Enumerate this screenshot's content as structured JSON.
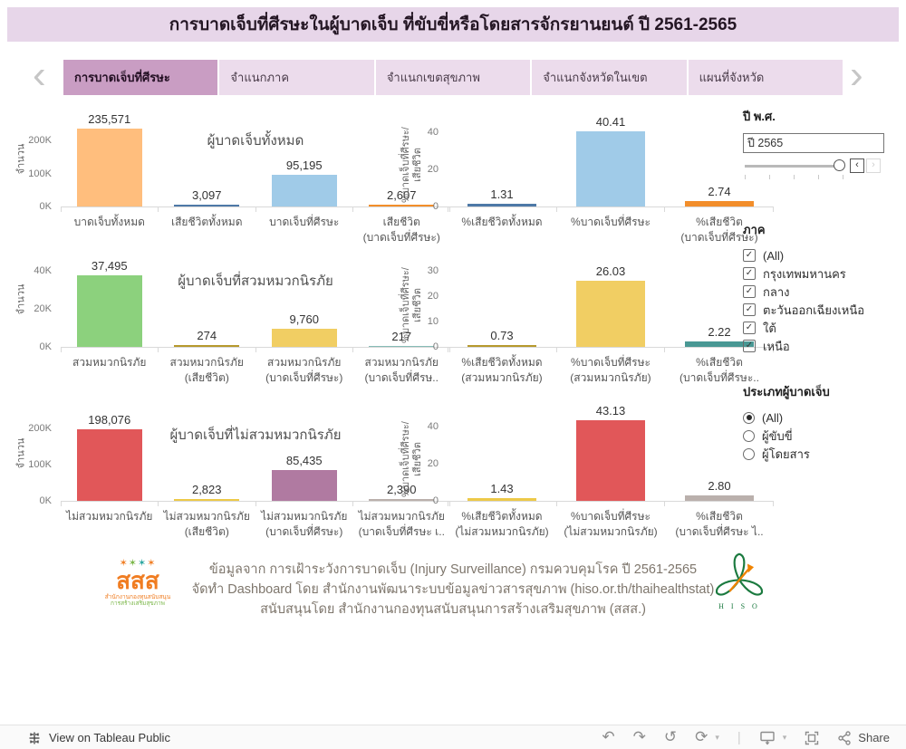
{
  "title": "การบาดเจ็บที่ศีรษะในผู้บาดเจ็บ ที่ขับขี่หรือโดยสารจักรยานยนต์ ปี 2561-2565",
  "tabs": {
    "items": [
      "การบาดเจ็บที่ศีรษะ",
      "จำแนกภาค",
      "จำแนกเขตสุขภาพ",
      "จำแนกจังหวัดในเขต",
      "แผนที่จังหวัด"
    ],
    "active_index": 0
  },
  "colors": {
    "title_bar_bg": "#e7d6e9",
    "tab_active_bg": "#c99dc3",
    "tab_inactive_bg": "#ecdcec",
    "toolbar_bg": "#fafafa",
    "footer_text": "#7e766c"
  },
  "chart_data": [
    {
      "type": "bar",
      "name": "total-injured",
      "title": "ผู้บาดเจ็บทั้งหมด",
      "ylabel_lines": [
        "จำนวน"
      ],
      "ymax": 288000,
      "yticks": [
        {
          "label": "0K",
          "value": 0
        },
        {
          "label": "100K",
          "value": 100000
        },
        {
          "label": "200K",
          "value": 200000
        }
      ],
      "categories": [
        [
          "บาดเจ็บทั้งหมด"
        ],
        [
          "เสียชีวิตทั้งหมด"
        ],
        [
          "บาดเจ็บที่ศีรษะ"
        ],
        [
          "เสียชีวิต",
          "(บาดเจ็บที่ศีรษะ)"
        ]
      ],
      "values": [
        235571,
        3097,
        95195,
        2607
      ],
      "value_labels": [
        "235,571",
        "3,097",
        "95,195",
        "2,607"
      ],
      "colors": [
        "#FFBE7D",
        "#4E79A7",
        "#A0CBE8",
        "#F28E2B"
      ]
    },
    {
      "type": "bar",
      "name": "helmet-injured",
      "title": "ผู้บาดเจ็บที่สวมหมวกนิรภัย",
      "ylabel_lines": [
        "จำนวน"
      ],
      "ymax": 50000,
      "yticks": [
        {
          "label": "0K",
          "value": 0
        },
        {
          "label": "20K",
          "value": 20000
        },
        {
          "label": "40K",
          "value": 40000
        }
      ],
      "categories": [
        [
          "สวมหมวกนิรภัย"
        ],
        [
          "สวมหมวกนิรภัย",
          "(เสียชีวิต)"
        ],
        [
          "สวมหมวกนิรภัย",
          "(บาดเจ็บที่ศีรษะ)"
        ],
        [
          "สวมหมวกนิรภัย",
          "(บาดเจ็บที่ศีรษ.."
        ]
      ],
      "values": [
        37495,
        274,
        9760,
        217
      ],
      "value_labels": [
        "37,495",
        "274",
        "9,760",
        "217"
      ],
      "colors": [
        "#8CD17D",
        "#B6992D",
        "#F1CE63",
        "#86BCB6"
      ]
    },
    {
      "type": "bar",
      "name": "no-helmet-injured",
      "title": "ผู้บาดเจ็บที่ไม่สวมหมวกนิรภัย",
      "ylabel_lines": [
        "จำนวน"
      ],
      "ymax": 262000,
      "yticks": [
        {
          "label": "0K",
          "value": 0
        },
        {
          "label": "100K",
          "value": 100000
        },
        {
          "label": "200K",
          "value": 200000
        }
      ],
      "categories": [
        [
          "ไม่สวมหมวกนิรภัย"
        ],
        [
          "ไม่สวมหมวกนิรภัย",
          "(เสียชีวิต)"
        ],
        [
          "ไม่สวมหมวกนิรภัย",
          "(บาดเจ็บที่ศีรษะ)"
        ],
        [
          "ไม่สวมหมวกนิรภัย",
          "(บาดเจ็บที่ศีรษะ เ.."
        ]
      ],
      "values": [
        198076,
        2823,
        85435,
        2390
      ],
      "value_labels": [
        "198,076",
        "2,823",
        "85,435",
        "2,390"
      ],
      "colors": [
        "#E15759",
        "#EDC948",
        "#B07AA1",
        "#BAB0AC"
      ]
    },
    {
      "type": "bar",
      "name": "total-pct",
      "title": "",
      "ylabel_lines": [
        "%บาดเจ็บที่ศีรษะ/",
        "เสียชีวิต"
      ],
      "ymax": 51,
      "yticks": [
        {
          "label": "0",
          "value": 0
        },
        {
          "label": "20",
          "value": 20
        },
        {
          "label": "40",
          "value": 40
        }
      ],
      "categories": [
        [
          "%เสียชีวิตทั้งหมด"
        ],
        [
          "%บาดเจ็บที่ศีรษะ"
        ],
        [
          "%เสียชีวิต",
          "(บาดเจ็บที่ศีรษะ)"
        ]
      ],
      "values": [
        1.31,
        40.41,
        2.74
      ],
      "value_labels": [
        "1.31",
        "40.41",
        "2.74"
      ],
      "colors": [
        "#4E79A7",
        "#A0CBE8",
        "#F28E2B"
      ]
    },
    {
      "type": "bar",
      "name": "helmet-pct",
      "title": "",
      "ylabel_lines": [
        "%บาดเจ็บที่ศีรษะ/",
        "เสียชีวิต"
      ],
      "ymax": 37.5,
      "yticks": [
        {
          "label": "0",
          "value": 0
        },
        {
          "label": "10",
          "value": 10
        },
        {
          "label": "20",
          "value": 20
        },
        {
          "label": "30",
          "value": 30
        }
      ],
      "categories": [
        [
          "%เสียชีวิตทั้งหมด",
          "(สวมหมวกนิรภัย)"
        ],
        [
          "%บาดเจ็บที่ศีรษะ",
          "(สวมหมวกนิรภัย)"
        ],
        [
          "%เสียชีวิต",
          "(บาดเจ็บที่ศีรษะ.."
        ]
      ],
      "values": [
        0.73,
        26.03,
        2.22
      ],
      "value_labels": [
        "0.73",
        "26.03",
        "2.22"
      ],
      "colors": [
        "#B6992D",
        "#F1CE63",
        "#499894"
      ]
    },
    {
      "type": "bar",
      "name": "no-helmet-pct",
      "title": "",
      "ylabel_lines": [
        "%บาดเจ็บที่ศีรษะ/",
        "เสียชีวิต"
      ],
      "ymax": 51,
      "yticks": [
        {
          "label": "0",
          "value": 0
        },
        {
          "label": "20",
          "value": 20
        },
        {
          "label": "40",
          "value": 40
        }
      ],
      "categories": [
        [
          "%เสียชีวิตทั้งหมด",
          "(ไม่สวมหมวกนิรภัย)"
        ],
        [
          "%บาดเจ็บที่ศีรษะ",
          "(ไม่สวมหมวกนิรภัย)"
        ],
        [
          "%เสียชีวิต",
          "(บาดเจ็บที่ศีรษะ ไ.."
        ]
      ],
      "values": [
        1.43,
        43.13,
        2.8
      ],
      "value_labels": [
        "1.43",
        "43.13",
        "2.80"
      ],
      "colors": [
        "#EDC948",
        "#E15759",
        "#BAB0AC"
      ]
    }
  ],
  "filters": {
    "year": {
      "label": "ปี พ.ศ.",
      "value": "ปี 2565"
    },
    "region": {
      "label": "ภาค",
      "options": [
        {
          "label": "(All)",
          "checked": true
        },
        {
          "label": "กรุงเทพมหานคร",
          "checked": true
        },
        {
          "label": "กลาง",
          "checked": true
        },
        {
          "label": "ตะวันออกเฉียงเหนือ",
          "checked": true
        },
        {
          "label": "ใต้",
          "checked": true
        },
        {
          "label": "เหนือ",
          "checked": true
        }
      ]
    },
    "injured_type": {
      "label": "ประเภทผู้บาดเจ็บ",
      "options": [
        {
          "label": "(All)",
          "selected": true
        },
        {
          "label": "ผู้ขับขี่",
          "selected": false
        },
        {
          "label": "ผู้โดยสาร",
          "selected": false
        }
      ]
    }
  },
  "footer": {
    "lines": [
      "ข้อมูลจาก การเฝ้าระวังการบาดเจ็บ (Injury Surveillance) กรมควบคุมโรค ปี 2561-2565",
      "จัดทำ Dashboard โดย สำนักงานพัฒนาระบบข้อมูลข่าวสารสุขภาพ (hiso.or.th/thaihealthstat)",
      "สนับสนุนโดย สำนักงานกองทุนสนับสนุนการสร้างเสริมสุขภาพ (สสส.)"
    ],
    "sss_logo": {
      "stars": "✶✶✶",
      "main": "สสส",
      "sub1": "สำนักงานกองทุนสนับสนุน",
      "sub2": "การสร้างเสริมสุขภาพ"
    },
    "hiso_logo": {
      "text": "H I S O"
    }
  },
  "toolbar": {
    "view_label": "View on Tableau Public",
    "share_label": "Share"
  },
  "icons": {
    "undo": "↶",
    "redo": "↷",
    "replay": "↺",
    "refresh": "⟳",
    "caret": "▾",
    "divider": "|",
    "prev": "‹",
    "next": "›",
    "check": "✓"
  }
}
